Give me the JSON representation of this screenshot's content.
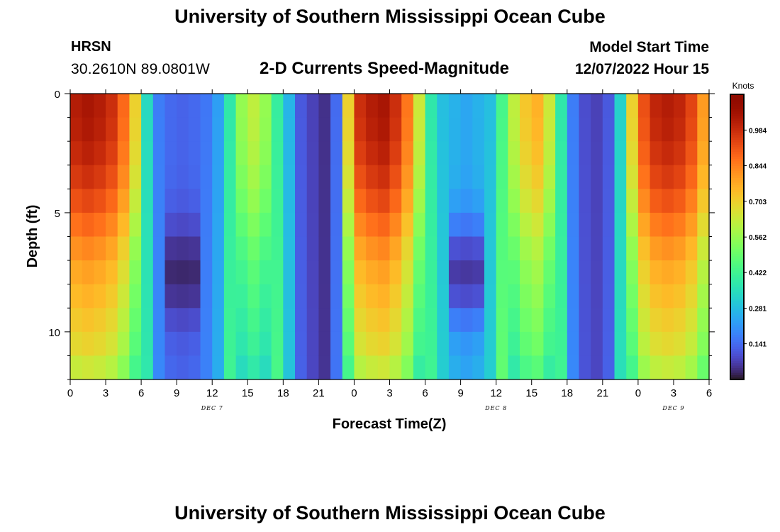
{
  "header": {
    "title": "University of Southern Mississippi Ocean Cube",
    "station": "HRSN",
    "coordinates": "30.2610N  89.0801W",
    "subtitle": "2-D Currents Speed-Magnitude",
    "model_start_label": "Model Start Time",
    "model_start_value": "12/07/2022 Hour 15"
  },
  "footer": {
    "title": "University of Southern Mississippi Ocean Cube"
  },
  "chart_data": {
    "type": "heatmap",
    "title": "2-D Currents Speed-Magnitude",
    "xlabel": "Forecast Time(Z)",
    "ylabel": "Depth (ft)",
    "x_tick_labels": [
      "0",
      "3",
      "6",
      "9",
      "12",
      "15",
      "18",
      "21",
      "0",
      "3",
      "6",
      "9",
      "12",
      "15",
      "18",
      "21",
      "0",
      "3",
      "6"
    ],
    "x_hours_range": [
      0,
      54
    ],
    "day_labels": [
      {
        "label": "DEC 7",
        "hour": 12
      },
      {
        "label": "DEC 8",
        "hour": 36
      },
      {
        "label": "DEC 9",
        "hour": 51
      }
    ],
    "y_ticks": [
      0,
      5,
      10
    ],
    "y_tick_labels": [
      "0",
      "5",
      "10"
    ],
    "ylim": [
      0,
      12
    ],
    "y_inverted": true,
    "colorbar": {
      "unit": "Knots",
      "tick_labels": [
        "0.984",
        "0.844",
        "0.703",
        "0.562",
        "0.422",
        "0.281",
        "0.141"
      ],
      "tick_values": [
        0.984,
        0.844,
        0.703,
        0.562,
        0.422,
        0.281,
        0.141
      ],
      "range": [
        0.0,
        1.125
      ],
      "colormap": "turbo"
    },
    "grid": {
      "hour_step": 1,
      "depth_step": 1,
      "hours": [
        0,
        1,
        2,
        3,
        4,
        5,
        6,
        7,
        8,
        9,
        10,
        11,
        12,
        13,
        14,
        15,
        16,
        17,
        18,
        19,
        20,
        21,
        22,
        23,
        24,
        25,
        26,
        27,
        28,
        29,
        30,
        31,
        32,
        33,
        34,
        35,
        36,
        37,
        38,
        39,
        40,
        41,
        42,
        43,
        44,
        45,
        46,
        47,
        48,
        49,
        50,
        51,
        52,
        53
      ],
      "depths": [
        0,
        1,
        2,
        3,
        4,
        5,
        6,
        7,
        8,
        9,
        10,
        11
      ],
      "speed_profile_by_hour": [
        1.02,
        1.04,
        1.02,
        0.98,
        0.88,
        0.7,
        0.36,
        0.18,
        0.14,
        0.13,
        0.14,
        0.17,
        0.24,
        0.4,
        0.56,
        0.62,
        0.56,
        0.42,
        0.28,
        0.12,
        0.08,
        0.05,
        0.15,
        0.7,
        0.98,
        1.02,
        1.04,
        0.98,
        0.86,
        0.64,
        0.4,
        0.3,
        0.26,
        0.24,
        0.26,
        0.3,
        0.46,
        0.62,
        0.72,
        0.76,
        0.64,
        0.4,
        0.18,
        0.1,
        0.08,
        0.12,
        0.34,
        0.7,
        0.92,
        1.0,
        1.02,
        1.0,
        0.94,
        0.8
      ],
      "depth_factor": [
        1.0,
        0.99,
        0.97,
        0.94,
        0.9,
        0.85,
        0.8,
        0.76,
        0.73,
        0.7,
        0.67,
        0.62
      ],
      "min_trough_hours": [
        9,
        33
      ],
      "min_trough_depth": 7
    }
  }
}
